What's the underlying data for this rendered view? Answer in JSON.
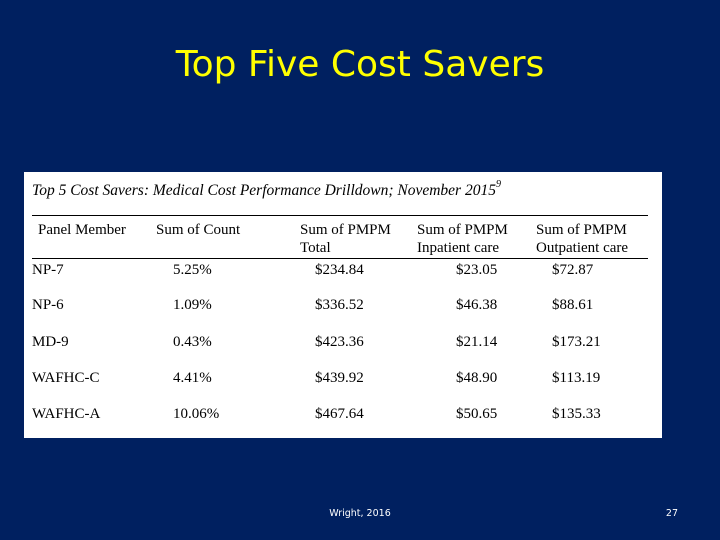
{
  "slide": {
    "title": "Top Five Cost Savers",
    "footer": "Wright, 2016",
    "page_number": "27"
  },
  "table": {
    "caption": "Top 5 Cost Savers:  Medical Cost Performance Drilldown; November 2015",
    "caption_superscript": "9",
    "headers": [
      {
        "line1": "Panel Member",
        "line2": ""
      },
      {
        "line1": "Sum of Count",
        "line2": ""
      },
      {
        "line1": "Sum of PMPM",
        "line2": "Total"
      },
      {
        "line1": "Sum of PMPM",
        "line2": "Inpatient care"
      },
      {
        "line1": "Sum of PMPM",
        "line2": "Outpatient care"
      }
    ],
    "rows": [
      [
        "NP-7",
        "5.25%",
        "$234.84",
        "$23.05",
        "$72.87"
      ],
      [
        "NP-6",
        "1.09%",
        "$336.52",
        "$46.38",
        "$88.61"
      ],
      [
        "MD-9",
        "0.43%",
        "$423.36",
        "$21.14",
        "$173.21"
      ],
      [
        "WAFHC-C",
        "4.41%",
        "$439.92",
        "$48.90",
        "$113.19"
      ],
      [
        "WAFHC-A",
        "10.06%",
        "$467.64",
        "$50.65",
        "$135.33"
      ]
    ]
  }
}
